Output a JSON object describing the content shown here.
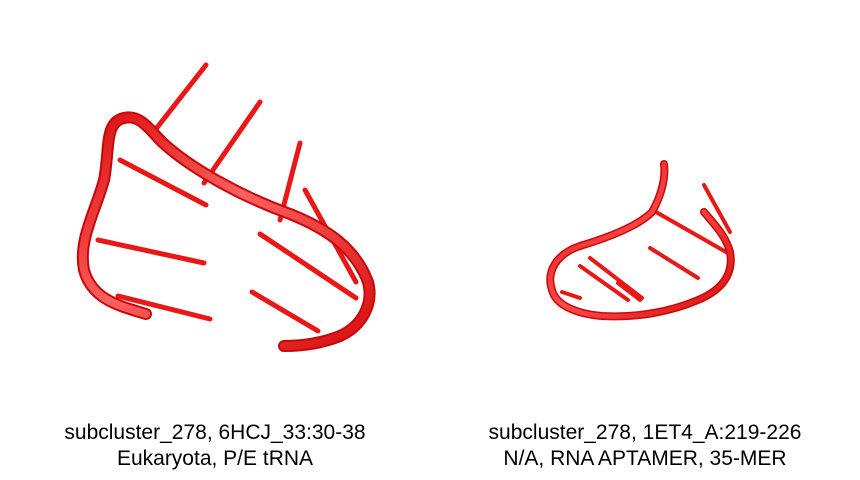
{
  "colors": {
    "backbone": "#e01010",
    "backbone_highlight": "#ff6a6a",
    "background": "#ffffff",
    "text": "#000000"
  },
  "panels": [
    {
      "id": "left",
      "caption_line1": "subcluster_278, 6HCJ_33:30-38",
      "caption_line2": "Eukaryota, P/E tRNA"
    },
    {
      "id": "right",
      "caption_line1": "subcluster_278, 1ET4_A:219-226",
      "caption_line2": "N/A, RNA APTAMER, 35-MER"
    }
  ]
}
